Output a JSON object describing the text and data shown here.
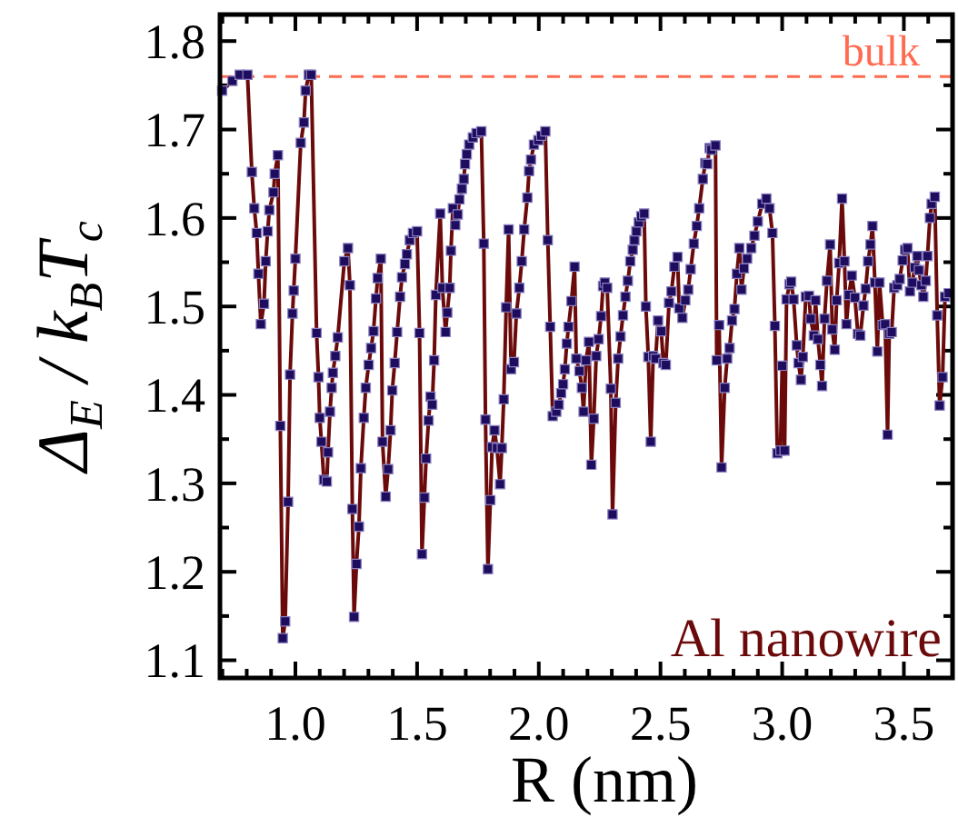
{
  "chart_data": {
    "type": "line",
    "xlabel": "R (nm)",
    "ylabel": "Δ$_{E}$ / k$_{B}$T$_{c}$",
    "annotations": [
      "Al nanowire"
    ],
    "xlim": [
      0.69,
      3.7
    ],
    "ylim": [
      1.08,
      1.83
    ],
    "xticks": [
      {
        "value": 0.7,
        "label": null
      },
      {
        "value": 0.8,
        "label": null
      },
      {
        "value": 0.9,
        "label": null
      },
      {
        "value": 1.0,
        "label": "1.0"
      },
      {
        "value": 1.1,
        "label": null
      },
      {
        "value": 1.2,
        "label": null
      },
      {
        "value": 1.3,
        "label": null
      },
      {
        "value": 1.4,
        "label": null
      },
      1.5,
      {
        "value": 1.6,
        "label": null
      },
      {
        "value": 1.7,
        "label": null
      },
      {
        "value": 1.8,
        "label": null
      },
      {
        "value": 1.9,
        "label": null
      },
      {
        "value": 2.0,
        "label": "2.0"
      },
      {
        "value": 2.1,
        "label": null
      },
      {
        "value": 2.2,
        "label": null
      },
      {
        "value": 2.3,
        "label": null
      },
      {
        "value": 2.4,
        "label": null
      },
      2.5,
      {
        "value": 2.6,
        "label": null
      },
      {
        "value": 2.7,
        "label": null
      },
      {
        "value": 2.8,
        "label": null
      },
      {
        "value": 2.9,
        "label": null
      },
      {
        "value": 3.0,
        "label": "3.0"
      },
      {
        "value": 3.1,
        "label": null
      },
      {
        "value": 3.2,
        "label": null
      },
      {
        "value": 3.3,
        "label": null
      },
      {
        "value": 3.4,
        "label": null
      },
      3.5,
      {
        "value": 3.6,
        "label": null
      }
    ],
    "yticks": [
      1.1,
      {
        "value": 1.15,
        "label": null
      },
      1.2,
      {
        "value": 1.25,
        "label": null
      },
      1.3,
      {
        "value": 1.35,
        "label": null
      },
      1.4,
      {
        "value": 1.45,
        "label": null
      },
      1.5,
      {
        "value": 1.55,
        "label": null
      },
      1.6,
      {
        "value": 1.65,
        "label": null
      },
      1.7,
      {
        "value": 1.75,
        "label": null
      },
      1.8
    ],
    "ref_lines": [
      {
        "axis": "y",
        "value": 1.76,
        "label": "bulk",
        "color": "#ff6a50",
        "line_style": "dashed"
      }
    ],
    "marker": "square",
    "line_style": "solid",
    "series": [
      {
        "color": "#6b0a0a",
        "x": [
          0.699,
          0.741,
          0.771,
          0.803,
          0.821,
          0.831,
          0.841,
          0.848,
          0.858,
          0.871,
          0.878,
          0.886,
          0.893,
          0.91,
          0.915,
          0.928,
          0.938,
          0.948,
          0.958,
          0.97,
          0.978,
          0.988,
          0.993,
          1.0,
          1.022,
          1.035,
          1.042,
          1.055,
          1.065,
          1.087,
          1.095,
          1.1,
          1.107,
          1.117,
          1.129,
          1.134,
          1.142,
          1.149,
          1.154,
          1.164,
          1.174,
          1.201,
          1.216,
          1.224,
          1.234,
          1.241,
          1.251,
          1.261,
          1.269,
          1.281,
          1.289,
          1.301,
          1.311,
          1.321,
          1.331,
          1.338,
          1.351,
          1.358,
          1.371,
          1.381,
          1.391,
          1.398,
          1.408,
          1.418,
          1.43,
          1.438,
          1.45,
          1.458,
          1.47,
          1.483,
          1.5,
          1.51,
          1.52,
          1.53,
          1.537,
          1.547,
          1.555,
          1.562,
          1.57,
          1.577,
          1.595,
          1.604,
          1.617,
          1.624,
          1.634,
          1.639,
          1.647,
          1.657,
          1.667,
          1.674,
          1.684,
          1.692,
          1.697,
          1.704,
          1.714,
          1.729,
          1.744,
          1.764,
          1.774,
          1.781,
          1.791,
          1.801,
          1.808,
          1.818,
          1.828,
          1.841,
          1.848,
          1.856,
          1.866,
          1.876,
          1.886,
          1.898,
          1.908,
          1.92,
          1.93,
          1.94,
          1.953,
          1.96,
          1.968,
          1.98,
          1.998,
          2.01,
          2.027,
          2.037,
          2.047,
          2.057,
          2.072,
          2.082,
          2.092,
          2.1,
          2.107,
          2.115,
          2.122,
          2.134,
          2.147,
          2.154,
          2.167,
          2.177,
          2.184,
          2.194,
          2.206,
          2.216,
          2.226,
          2.236,
          2.246,
          2.256,
          2.264,
          2.271,
          2.281,
          2.296,
          2.303,
          2.316,
          2.326,
          2.336,
          2.346,
          2.356,
          2.366,
          2.376,
          2.386,
          2.393,
          2.401,
          2.411,
          2.421,
          2.433,
          2.44,
          2.45,
          2.46,
          2.47,
          2.48,
          2.49,
          2.503,
          2.512,
          2.522,
          2.535,
          2.545,
          2.557,
          2.57,
          2.577,
          2.59,
          2.602,
          2.614,
          2.624,
          2.637,
          2.649,
          2.659,
          2.674,
          2.684,
          2.692,
          2.702,
          2.709,
          2.726,
          2.731,
          2.741,
          2.751,
          2.764,
          2.774,
          2.784,
          2.794,
          2.804,
          2.814,
          2.824,
          2.833,
          2.843,
          2.856,
          2.873,
          2.886,
          2.9,
          2.918,
          2.935,
          2.948,
          2.96,
          2.97,
          2.98,
          2.993,
          3.0,
          3.01,
          3.018,
          3.03,
          3.037,
          3.047,
          3.06,
          3.067,
          3.077,
          3.085,
          3.097,
          3.11,
          3.117,
          3.13,
          3.137,
          3.147,
          3.157,
          3.164,
          3.174,
          3.184,
          3.197,
          3.206,
          3.216,
          3.224,
          3.234,
          3.246,
          3.256,
          3.264,
          3.274,
          3.286,
          3.299,
          3.311,
          3.321,
          3.334,
          3.343,
          3.353,
          3.363,
          3.371,
          3.381,
          3.391,
          3.4,
          3.413,
          3.423,
          3.433,
          3.44,
          3.45,
          3.46,
          3.473,
          3.483,
          3.495,
          3.505,
          3.515,
          3.525,
          3.535,
          3.545,
          3.555,
          3.562,
          3.572,
          3.58,
          3.59,
          3.597,
          3.607,
          3.614,
          3.627,
          3.637,
          3.647,
          3.659,
          3.669,
          3.684
        ],
        "values": [
          1.744,
          1.755,
          1.762,
          1.762,
          1.652,
          1.611,
          1.583,
          1.537,
          1.48,
          1.503,
          1.551,
          1.585,
          1.609,
          1.629,
          1.65,
          1.671,
          1.365,
          1.125,
          1.144,
          1.279,
          1.423,
          1.492,
          1.518,
          1.554,
          1.685,
          1.708,
          1.744,
          1.762,
          1.762,
          1.47,
          1.42,
          1.374,
          1.347,
          1.304,
          1.302,
          1.335,
          1.381,
          1.408,
          1.425,
          1.444,
          1.465,
          1.551,
          1.566,
          1.524,
          1.271,
          1.149,
          1.209,
          1.251,
          1.317,
          1.374,
          1.408,
          1.434,
          1.453,
          1.472,
          1.509,
          1.532,
          1.554,
          1.347,
          1.285,
          1.316,
          1.36,
          1.405,
          1.436,
          1.471,
          1.511,
          1.533,
          1.548,
          1.559,
          1.575,
          1.583,
          1.585,
          1.47,
          1.22,
          1.284,
          1.328,
          1.371,
          1.398,
          1.389,
          1.439,
          1.513,
          1.605,
          1.521,
          1.471,
          1.493,
          1.521,
          1.563,
          1.611,
          1.592,
          1.604,
          1.621,
          1.633,
          1.644,
          1.661,
          1.672,
          1.683,
          1.691,
          1.696,
          1.698,
          1.571,
          1.372,
          1.203,
          1.281,
          1.341,
          1.36,
          1.34,
          1.299,
          1.34,
          1.395,
          1.499,
          1.587,
          1.429,
          1.437,
          1.492,
          1.521,
          1.551,
          1.587,
          1.623,
          1.653,
          1.666,
          1.683,
          1.688,
          1.693,
          1.698,
          1.575,
          1.477,
          1.376,
          1.381,
          1.389,
          1.402,
          1.412,
          1.429,
          1.458,
          1.477,
          1.506,
          1.545,
          1.441,
          1.427,
          1.408,
          1.381,
          1.439,
          1.46,
          1.321,
          1.373,
          1.444,
          1.463,
          1.489,
          1.523,
          1.527,
          1.521,
          1.407,
          1.265,
          1.391,
          1.441,
          1.466,
          1.49,
          1.511,
          1.529,
          1.551,
          1.564,
          1.575,
          1.585,
          1.595,
          1.602,
          1.605,
          1.5,
          1.443,
          1.347,
          1.444,
          1.441,
          1.484,
          1.472,
          1.436,
          1.434,
          1.504,
          1.517,
          1.545,
          1.556,
          1.498,
          1.487,
          1.507,
          1.519,
          1.542,
          1.571,
          1.591,
          1.611,
          1.644,
          1.662,
          1.661,
          1.679,
          1.677,
          1.682,
          1.439,
          1.479,
          1.318,
          1.408,
          1.441,
          1.453,
          1.484,
          1.497,
          1.537,
          1.566,
          1.519,
          1.543,
          1.554,
          1.566,
          1.58,
          1.596,
          1.616,
          1.622,
          1.611,
          1.583,
          1.478,
          1.334,
          1.337,
          1.433,
          1.337,
          1.508,
          1.525,
          1.528,
          1.508,
          1.456,
          1.436,
          1.417,
          1.443,
          1.511,
          1.512,
          1.486,
          1.467,
          1.507,
          1.463,
          1.434,
          1.41,
          1.486,
          1.529,
          1.57,
          1.474,
          1.451,
          1.507,
          1.549,
          1.622,
          1.551,
          1.48,
          1.513,
          1.535,
          1.51,
          1.469,
          1.467,
          1.501,
          1.52,
          1.551,
          1.57,
          1.591,
          1.527,
          1.449,
          1.527,
          1.479,
          1.48,
          1.355,
          1.469,
          1.471,
          1.521,
          1.524,
          1.531,
          1.552,
          1.564,
          1.566,
          1.517,
          1.527,
          1.544,
          1.557,
          1.541,
          1.524,
          1.511,
          1.529,
          1.557,
          1.6,
          1.616,
          1.624,
          1.49,
          1.388,
          1.42,
          1.511,
          1.515
        ]
      }
    ]
  }
}
